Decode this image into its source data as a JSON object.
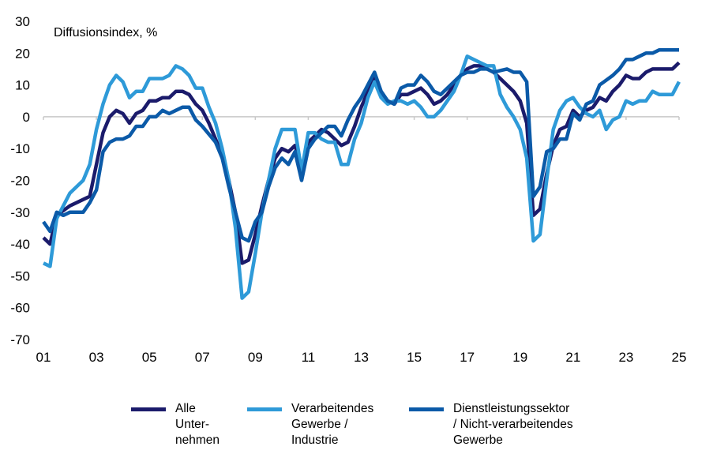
{
  "chart_data": {
    "type": "line",
    "title": "",
    "ylabel": "Diffusionsindex, %",
    "xlabel": "",
    "xlim": [
      2001,
      2025
    ],
    "ylim": [
      -70,
      30
    ],
    "yticks": [
      30,
      20,
      10,
      0,
      -10,
      -20,
      -30,
      -40,
      -50,
      -60,
      -70
    ],
    "xticks": [
      2001,
      2003,
      2005,
      2007,
      2009,
      2011,
      2013,
      2015,
      2017,
      2019,
      2021,
      2023,
      2025
    ],
    "xtick_labels": [
      "01",
      "03",
      "05",
      "07",
      "09",
      "11",
      "13",
      "15",
      "17",
      "19",
      "21",
      "23",
      "25"
    ],
    "grid": "zero-line only",
    "legend_position": "bottom",
    "series": [
      {
        "name": "Alle Unter-nehmen",
        "label_lines": [
          "Alle",
          "Unter-",
          "nehmen"
        ],
        "color": "#1b1b6b",
        "x": [
          2001,
          2001.25,
          2001.5,
          2002,
          2002.5,
          2002.75,
          2003,
          2003.25,
          2003.5,
          2003.75,
          2004,
          2004.25,
          2004.5,
          2004.75,
          2005,
          2005.25,
          2005.5,
          2005.75,
          2006,
          2006.25,
          2006.5,
          2006.75,
          2007,
          2007.25,
          2007.5,
          2007.75,
          2008,
          2008.25,
          2008.5,
          2008.75,
          2009,
          2009.25,
          2009.5,
          2009.75,
          2010,
          2010.25,
          2010.5,
          2010.75,
          2011,
          2011.25,
          2011.5,
          2011.75,
          2012,
          2012.25,
          2012.5,
          2012.75,
          2013,
          2013.25,
          2013.5,
          2013.75,
          2014,
          2014.25,
          2014.5,
          2014.75,
          2015,
          2015.25,
          2015.5,
          2015.75,
          2016,
          2016.25,
          2016.5,
          2016.75,
          2017,
          2017.25,
          2017.5,
          2017.75,
          2018,
          2018.25,
          2018.5,
          2018.75,
          2019,
          2019.25,
          2019.5,
          2019.75,
          2020,
          2020.25,
          2020.5,
          2020.75,
          2021,
          2021.25,
          2021.5,
          2021.75,
          2022,
          2022.25,
          2022.5,
          2022.75,
          2023,
          2023.25,
          2023.5,
          2023.75,
          2024,
          2024.5,
          2024.75,
          2025
        ],
        "values": [
          -38,
          -40,
          -31,
          -28,
          -26,
          -25,
          -15,
          -5,
          0,
          2,
          1,
          -2,
          1,
          2,
          5,
          5,
          6,
          6,
          8,
          8,
          7,
          4,
          2,
          -2,
          -7,
          -12,
          -20,
          -30,
          -46,
          -45,
          -37,
          -28,
          -20,
          -13,
          -10,
          -11,
          -9,
          -16,
          -8,
          -6,
          -4,
          -5,
          -7,
          -9,
          -8,
          -3,
          3,
          8,
          13,
          7,
          5,
          4,
          7,
          7,
          8,
          9,
          7,
          4,
          5,
          7,
          10,
          13,
          15,
          16,
          16,
          15,
          14,
          12,
          10,
          8,
          5,
          -2,
          -31,
          -29,
          -18,
          -9,
          -4,
          -3,
          2,
          0,
          2,
          3,
          6,
          5,
          8,
          10,
          13,
          12,
          12,
          14,
          15,
          15,
          15,
          17
        ]
      },
      {
        "name": "Verarbeitendes Gewerbe / Industrie",
        "label_lines": [
          "Verarbeitendes",
          "Gewerbe /",
          "Industrie"
        ],
        "color": "#2e9ad8",
        "x": [
          2001,
          2001.25,
          2001.5,
          2002,
          2002.5,
          2002.75,
          2003,
          2003.25,
          2003.5,
          2003.75,
          2004,
          2004.25,
          2004.5,
          2004.75,
          2005,
          2005.5,
          2005.75,
          2006,
          2006.25,
          2006.5,
          2006.75,
          2007,
          2007.25,
          2007.5,
          2007.75,
          2008,
          2008.25,
          2008.5,
          2008.75,
          2009,
          2009.25,
          2009.5,
          2009.75,
          2010,
          2010.5,
          2010.75,
          2011,
          2011.25,
          2011.5,
          2011.75,
          2012,
          2012.25,
          2012.5,
          2012.75,
          2013,
          2013.25,
          2013.5,
          2013.75,
          2014,
          2014.25,
          2014.5,
          2014.75,
          2015,
          2015.25,
          2015.5,
          2015.75,
          2016,
          2016.5,
          2016.75,
          2017,
          2017.25,
          2017.5,
          2017.75,
          2018,
          2018.25,
          2018.5,
          2018.75,
          2019,
          2019.25,
          2019.5,
          2019.75,
          2020,
          2020.25,
          2020.5,
          2020.75,
          2021,
          2021.25,
          2021.5,
          2021.75,
          2022,
          2022.25,
          2022.5,
          2022.75,
          2023,
          2023.25,
          2023.5,
          2023.75,
          2024,
          2024.25,
          2024.75,
          2025
        ],
        "values": [
          -46,
          -47,
          -32,
          -24,
          -20,
          -15,
          -4,
          4,
          10,
          13,
          11,
          6,
          8,
          8,
          12,
          12,
          13,
          16,
          15,
          13,
          9,
          9,
          3,
          -2,
          -10,
          -20,
          -35,
          -57,
          -55,
          -43,
          -30,
          -20,
          -10,
          -4,
          -4,
          -17,
          -5,
          -5,
          -7,
          -8,
          -8,
          -15,
          -15,
          -7,
          -2,
          6,
          11,
          6,
          4,
          5,
          5,
          4,
          5,
          3,
          0,
          0,
          2,
          8,
          13,
          19,
          18,
          17,
          16,
          16,
          7,
          3,
          0,
          -4,
          -13,
          -39,
          -37,
          -20,
          -4,
          2,
          5,
          6,
          3,
          1,
          0,
          2,
          -4,
          -1,
          0,
          5,
          4,
          5,
          5,
          8,
          7,
          7,
          11
        ]
      },
      {
        "name": "Dienstleistungssektor / Nicht-verarbeitendes Gewerbe",
        "label_lines": [
          "Dienstleistungssektor",
          "/ Nicht-verarbeitendes",
          "Gewerbe"
        ],
        "color": "#0b5aa8",
        "x": [
          2001,
          2001.25,
          2001.5,
          2001.75,
          2002,
          2002.5,
          2002.75,
          2003,
          2003.25,
          2003.5,
          2003.75,
          2004,
          2004.25,
          2004.5,
          2004.75,
          2005,
          2005.25,
          2005.5,
          2005.75,
          2006,
          2006.25,
          2006.5,
          2006.75,
          2007,
          2007.5,
          2007.75,
          2008,
          2008.25,
          2008.5,
          2008.75,
          2009,
          2009.25,
          2009.5,
          2009.75,
          2010,
          2010.25,
          2010.5,
          2010.75,
          2011,
          2011.25,
          2011.5,
          2011.75,
          2012,
          2012.25,
          2012.5,
          2012.75,
          2013,
          2013.25,
          2013.5,
          2013.75,
          2014,
          2014.25,
          2014.5,
          2014.75,
          2015,
          2015.25,
          2015.5,
          2015.75,
          2016,
          2016.5,
          2016.75,
          2017,
          2017.25,
          2017.5,
          2017.75,
          2018,
          2018.5,
          2018.75,
          2019,
          2019.25,
          2019.5,
          2019.75,
          2020,
          2020.25,
          2020.5,
          2020.75,
          2021,
          2021.25,
          2021.5,
          2021.75,
          2022,
          2022.5,
          2022.75,
          2023,
          2023.25,
          2023.5,
          2023.75,
          2024,
          2024.25,
          2025
        ],
        "values": [
          -33,
          -36,
          -30,
          -31,
          -30,
          -30,
          -27,
          -23,
          -11,
          -8,
          -7,
          -7,
          -6,
          -3,
          -3,
          0,
          0,
          2,
          1,
          2,
          3,
          3,
          -1,
          -3,
          -8,
          -13,
          -22,
          -30,
          -38,
          -39,
          -33,
          -30,
          -22,
          -16,
          -13,
          -15,
          -11,
          -20,
          -10,
          -7,
          -5,
          -3,
          -3,
          -6,
          -1,
          3,
          6,
          10,
          14,
          8,
          5,
          4,
          9,
          10,
          10,
          13,
          11,
          8,
          7,
          11,
          13,
          14,
          14,
          15,
          15,
          14,
          15,
          14,
          14,
          11,
          -25,
          -22,
          -11,
          -10,
          -7,
          -7,
          1,
          -1,
          4,
          5,
          10,
          13,
          15,
          18,
          18,
          19,
          20,
          20,
          21,
          21
        ]
      }
    ]
  }
}
